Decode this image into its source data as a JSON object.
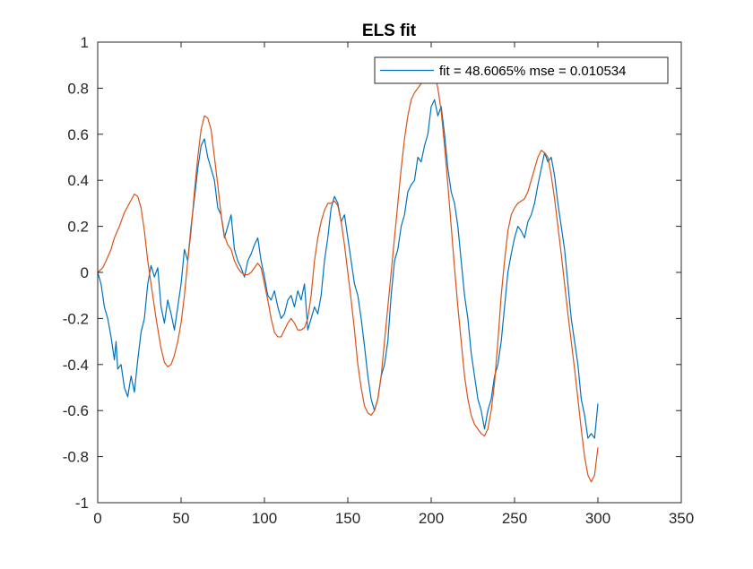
{
  "chart_data": {
    "type": "line",
    "title": "ELS fit",
    "xlabel": "",
    "ylabel": "",
    "xlim": [
      0,
      350
    ],
    "ylim": [
      -1,
      1
    ],
    "xticks": [
      0,
      50,
      100,
      150,
      200,
      250,
      300,
      350
    ],
    "yticks": [
      -1,
      -0.8,
      -0.6,
      -0.4,
      -0.2,
      0,
      0.2,
      0.4,
      0.6,
      0.8,
      1
    ],
    "xtick_labels": [
      "0",
      "50",
      "100",
      "150",
      "200",
      "250",
      "300",
      "350"
    ],
    "ytick_labels": [
      "-1",
      "-0.8",
      "-0.6",
      "-0.4",
      "-0.2",
      "0",
      "0.2",
      "0.4",
      "0.6",
      "0.8",
      "1"
    ],
    "grid": false,
    "legend_position": "top-right",
    "legend_entries": [
      "fit = 48.6065% mse = 0.010534"
    ],
    "series": [
      {
        "name": "fit = 48.6065% mse = 0.010534",
        "color": "#0072bd",
        "points": [
          [
            0,
            0.0
          ],
          [
            2,
            -0.05
          ],
          [
            4,
            -0.15
          ],
          [
            6,
            -0.2
          ],
          [
            8,
            -0.28
          ],
          [
            10,
            -0.38
          ],
          [
            11,
            -0.3
          ],
          [
            12,
            -0.42
          ],
          [
            14,
            -0.4
          ],
          [
            16,
            -0.5
          ],
          [
            18,
            -0.54
          ],
          [
            20,
            -0.45
          ],
          [
            22,
            -0.52
          ],
          [
            24,
            -0.38
          ],
          [
            26,
            -0.26
          ],
          [
            28,
            -0.2
          ],
          [
            30,
            -0.05
          ],
          [
            32,
            0.03
          ],
          [
            34,
            -0.02
          ],
          [
            36,
            0.02
          ],
          [
            38,
            -0.15
          ],
          [
            40,
            -0.22
          ],
          [
            42,
            -0.12
          ],
          [
            44,
            -0.18
          ],
          [
            46,
            -0.25
          ],
          [
            48,
            -0.15
          ],
          [
            50,
            -0.05
          ],
          [
            52,
            0.1
          ],
          [
            54,
            0.05
          ],
          [
            56,
            0.2
          ],
          [
            58,
            0.32
          ],
          [
            60,
            0.45
          ],
          [
            62,
            0.55
          ],
          [
            64,
            0.58
          ],
          [
            66,
            0.5
          ],
          [
            68,
            0.45
          ],
          [
            70,
            0.4
          ],
          [
            72,
            0.28
          ],
          [
            74,
            0.25
          ],
          [
            76,
            0.15
          ],
          [
            78,
            0.2
          ],
          [
            80,
            0.25
          ],
          [
            82,
            0.1
          ],
          [
            84,
            0.05
          ],
          [
            86,
            0.02
          ],
          [
            88,
            -0.02
          ],
          [
            90,
            0.05
          ],
          [
            92,
            0.08
          ],
          [
            94,
            0.12
          ],
          [
            96,
            0.15
          ],
          [
            98,
            0.05
          ],
          [
            100,
            -0.02
          ],
          [
            102,
            -0.1
          ],
          [
            104,
            -0.12
          ],
          [
            106,
            -0.08
          ],
          [
            108,
            -0.15
          ],
          [
            110,
            -0.2
          ],
          [
            112,
            -0.18
          ],
          [
            114,
            -0.12
          ],
          [
            116,
            -0.1
          ],
          [
            118,
            -0.15
          ],
          [
            120,
            -0.08
          ],
          [
            122,
            -0.12
          ],
          [
            124,
            -0.05
          ],
          [
            126,
            -0.25
          ],
          [
            128,
            -0.2
          ],
          [
            130,
            -0.15
          ],
          [
            132,
            -0.18
          ],
          [
            134,
            -0.1
          ],
          [
            136,
            0.05
          ],
          [
            138,
            0.15
          ],
          [
            140,
            0.28
          ],
          [
            142,
            0.33
          ],
          [
            144,
            0.3
          ],
          [
            146,
            0.22
          ],
          [
            148,
            0.25
          ],
          [
            150,
            0.15
          ],
          [
            152,
            0.05
          ],
          [
            154,
            -0.05
          ],
          [
            156,
            -0.1
          ],
          [
            158,
            -0.2
          ],
          [
            160,
            -0.32
          ],
          [
            162,
            -0.45
          ],
          [
            164,
            -0.55
          ],
          [
            166,
            -0.6
          ],
          [
            168,
            -0.55
          ],
          [
            170,
            -0.45
          ],
          [
            172,
            -0.4
          ],
          [
            174,
            -0.3
          ],
          [
            176,
            -0.1
          ],
          [
            178,
            0.05
          ],
          [
            180,
            0.1
          ],
          [
            182,
            0.2
          ],
          [
            184,
            0.25
          ],
          [
            186,
            0.35
          ],
          [
            188,
            0.38
          ],
          [
            190,
            0.4
          ],
          [
            192,
            0.5
          ],
          [
            194,
            0.48
          ],
          [
            196,
            0.55
          ],
          [
            198,
            0.6
          ],
          [
            200,
            0.72
          ],
          [
            202,
            0.75
          ],
          [
            204,
            0.68
          ],
          [
            206,
            0.72
          ],
          [
            208,
            0.6
          ],
          [
            210,
            0.45
          ],
          [
            212,
            0.35
          ],
          [
            214,
            0.3
          ],
          [
            216,
            0.2
          ],
          [
            218,
            0.05
          ],
          [
            220,
            -0.1
          ],
          [
            222,
            -0.2
          ],
          [
            224,
            -0.35
          ],
          [
            226,
            -0.45
          ],
          [
            228,
            -0.55
          ],
          [
            230,
            -0.6
          ],
          [
            232,
            -0.68
          ],
          [
            234,
            -0.6
          ],
          [
            236,
            -0.55
          ],
          [
            238,
            -0.45
          ],
          [
            240,
            -0.4
          ],
          [
            242,
            -0.3
          ],
          [
            244,
            -0.15
          ],
          [
            246,
            0.0
          ],
          [
            248,
            0.08
          ],
          [
            250,
            0.15
          ],
          [
            252,
            0.2
          ],
          [
            254,
            0.18
          ],
          [
            256,
            0.15
          ],
          [
            258,
            0.22
          ],
          [
            260,
            0.25
          ],
          [
            262,
            0.3
          ],
          [
            264,
            0.38
          ],
          [
            266,
            0.45
          ],
          [
            268,
            0.52
          ],
          [
            270,
            0.48
          ],
          [
            272,
            0.5
          ],
          [
            274,
            0.42
          ],
          [
            276,
            0.3
          ],
          [
            278,
            0.2
          ],
          [
            280,
            0.1
          ],
          [
            282,
            -0.05
          ],
          [
            284,
            -0.2
          ],
          [
            286,
            -0.3
          ],
          [
            288,
            -0.4
          ],
          [
            290,
            -0.55
          ],
          [
            292,
            -0.62
          ],
          [
            294,
            -0.72
          ],
          [
            296,
            -0.7
          ],
          [
            298,
            -0.72
          ],
          [
            300,
            -0.57
          ]
        ]
      },
      {
        "name": "",
        "color": "#d95319",
        "points": [
          [
            0,
            0.0
          ],
          [
            3,
            0.02
          ],
          [
            5,
            0.05
          ],
          [
            8,
            0.1
          ],
          [
            10,
            0.15
          ],
          [
            13,
            0.2
          ],
          [
            16,
            0.26
          ],
          [
            19,
            0.3
          ],
          [
            22,
            0.34
          ],
          [
            24,
            0.33
          ],
          [
            26,
            0.28
          ],
          [
            28,
            0.18
          ],
          [
            30,
            0.05
          ],
          [
            32,
            -0.05
          ],
          [
            35,
            -0.2
          ],
          [
            38,
            -0.33
          ],
          [
            40,
            -0.39
          ],
          [
            42,
            -0.41
          ],
          [
            44,
            -0.4
          ],
          [
            46,
            -0.36
          ],
          [
            48,
            -0.3
          ],
          [
            50,
            -0.22
          ],
          [
            52,
            -0.1
          ],
          [
            54,
            0.05
          ],
          [
            56,
            0.18
          ],
          [
            58,
            0.35
          ],
          [
            60,
            0.5
          ],
          [
            62,
            0.62
          ],
          [
            64,
            0.68
          ],
          [
            66,
            0.67
          ],
          [
            68,
            0.62
          ],
          [
            70,
            0.5
          ],
          [
            72,
            0.38
          ],
          [
            74,
            0.25
          ],
          [
            76,
            0.16
          ],
          [
            78,
            0.12
          ],
          [
            80,
            0.1
          ],
          [
            82,
            0.05
          ],
          [
            84,
            0.02
          ],
          [
            86,
            0.0
          ],
          [
            88,
            -0.01
          ],
          [
            90,
            -0.01
          ],
          [
            92,
            0.0
          ],
          [
            94,
            0.02
          ],
          [
            96,
            0.04
          ],
          [
            98,
            0.02
          ],
          [
            100,
            -0.05
          ],
          [
            102,
            -0.12
          ],
          [
            104,
            -0.2
          ],
          [
            106,
            -0.26
          ],
          [
            108,
            -0.28
          ],
          [
            110,
            -0.28
          ],
          [
            112,
            -0.25
          ],
          [
            114,
            -0.22
          ],
          [
            116,
            -0.2
          ],
          [
            118,
            -0.22
          ],
          [
            120,
            -0.25
          ],
          [
            122,
            -0.25
          ],
          [
            124,
            -0.24
          ],
          [
            126,
            -0.2
          ],
          [
            128,
            -0.1
          ],
          [
            130,
            0.05
          ],
          [
            132,
            0.15
          ],
          [
            134,
            0.22
          ],
          [
            136,
            0.27
          ],
          [
            138,
            0.3
          ],
          [
            140,
            0.3
          ],
          [
            142,
            0.31
          ],
          [
            144,
            0.29
          ],
          [
            146,
            0.22
          ],
          [
            148,
            0.12
          ],
          [
            150,
            0.0
          ],
          [
            152,
            -0.12
          ],
          [
            154,
            -0.25
          ],
          [
            156,
            -0.4
          ],
          [
            158,
            -0.5
          ],
          [
            160,
            -0.58
          ],
          [
            162,
            -0.61
          ],
          [
            164,
            -0.62
          ],
          [
            166,
            -0.6
          ],
          [
            168,
            -0.55
          ],
          [
            170,
            -0.45
          ],
          [
            172,
            -0.3
          ],
          [
            174,
            -0.15
          ],
          [
            176,
            0.0
          ],
          [
            178,
            0.15
          ],
          [
            180,
            0.3
          ],
          [
            182,
            0.45
          ],
          [
            184,
            0.58
          ],
          [
            186,
            0.68
          ],
          [
            188,
            0.75
          ],
          [
            190,
            0.78
          ],
          [
            192,
            0.8
          ],
          [
            194,
            0.82
          ],
          [
            196,
            0.84
          ],
          [
            198,
            0.86
          ],
          [
            200,
            0.88
          ],
          [
            202,
            0.86
          ],
          [
            204,
            0.8
          ],
          [
            206,
            0.7
          ],
          [
            208,
            0.55
          ],
          [
            210,
            0.38
          ],
          [
            212,
            0.2
          ],
          [
            214,
            0.02
          ],
          [
            216,
            -0.15
          ],
          [
            218,
            -0.3
          ],
          [
            220,
            -0.45
          ],
          [
            222,
            -0.55
          ],
          [
            224,
            -0.62
          ],
          [
            226,
            -0.66
          ],
          [
            228,
            -0.68
          ],
          [
            230,
            -0.7
          ],
          [
            232,
            -0.71
          ],
          [
            234,
            -0.68
          ],
          [
            236,
            -0.6
          ],
          [
            238,
            -0.48
          ],
          [
            240,
            -0.3
          ],
          [
            242,
            -0.1
          ],
          [
            244,
            0.05
          ],
          [
            246,
            0.18
          ],
          [
            248,
            0.25
          ],
          [
            250,
            0.28
          ],
          [
            252,
            0.3
          ],
          [
            254,
            0.31
          ],
          [
            256,
            0.32
          ],
          [
            258,
            0.35
          ],
          [
            260,
            0.4
          ],
          [
            262,
            0.45
          ],
          [
            264,
            0.5
          ],
          [
            266,
            0.53
          ],
          [
            268,
            0.52
          ],
          [
            270,
            0.5
          ],
          [
            272,
            0.42
          ],
          [
            274,
            0.32
          ],
          [
            276,
            0.2
          ],
          [
            278,
            0.08
          ],
          [
            280,
            -0.05
          ],
          [
            282,
            -0.18
          ],
          [
            284,
            -0.3
          ],
          [
            286,
            -0.42
          ],
          [
            288,
            -0.55
          ],
          [
            290,
            -0.68
          ],
          [
            292,
            -0.8
          ],
          [
            294,
            -0.88
          ],
          [
            296,
            -0.91
          ],
          [
            298,
            -0.88
          ],
          [
            300,
            -0.76
          ]
        ]
      }
    ]
  }
}
